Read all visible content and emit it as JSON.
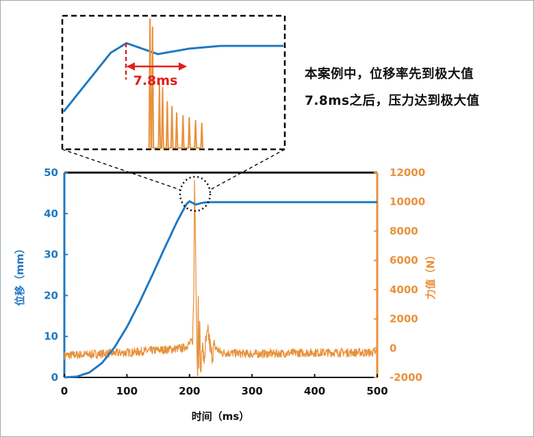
{
  "annotation": {
    "line1": "本案例中，位移率先到极大值",
    "line2": "7.8ms之后，压力达到极大值",
    "inset_label": "7.8ms"
  },
  "colors": {
    "displacement": "#1f78c1",
    "force": "#e8913b",
    "marker": "#e0201b",
    "axis": "#111111"
  },
  "chart_data": {
    "type": "line",
    "title": "",
    "xlabel": "时间（ms）",
    "ylabel_left": "位移（mm）",
    "ylabel_right": "力值（N）",
    "xlim": [
      0,
      500
    ],
    "ylim_left": [
      0,
      50
    ],
    "ylim_right": [
      -2000,
      12000
    ],
    "xticks": [
      "0",
      "100",
      "200",
      "300",
      "400",
      "500"
    ],
    "yticks_left": [
      "0",
      "10",
      "20",
      "30",
      "40",
      "50"
    ],
    "yticks_right": [
      "-2000",
      "0",
      "2000",
      "4000",
      "6000",
      "8000",
      "10000",
      "12000"
    ],
    "grid": false,
    "series": [
      {
        "axis": "left",
        "x": [
          0,
          20,
          40,
          60,
          80,
          100,
          120,
          140,
          160,
          180,
          195,
          200,
          205,
          210,
          215,
          220,
          230,
          250,
          300,
          400,
          500
        ],
        "values": [
          0,
          0.2,
          1.2,
          3.5,
          7.3,
          12.3,
          18.3,
          24.8,
          31.5,
          38.0,
          42.3,
          43.0,
          42.6,
          42.2,
          42.4,
          42.6,
          42.8,
          42.8,
          42.8,
          42.8,
          42.8
        ]
      },
      {
        "axis": "right",
        "noise_amplitude": 300,
        "x": [
          0,
          100,
          190,
          200,
          205,
          207,
          208,
          209,
          210,
          211,
          212,
          213,
          214,
          215,
          216,
          218,
          220,
          223,
          226,
          230,
          235,
          240,
          250,
          300,
          400,
          500
        ],
        "values": [
          -500,
          -300,
          0,
          300,
          500,
          4000,
          11500,
          9000,
          6000,
          2500,
          0,
          -1500,
          3000,
          -1800,
          2000,
          -1800,
          500,
          -1000,
          300,
          1000,
          -500,
          100,
          -300,
          -400,
          -300,
          -300
        ]
      }
    ]
  }
}
